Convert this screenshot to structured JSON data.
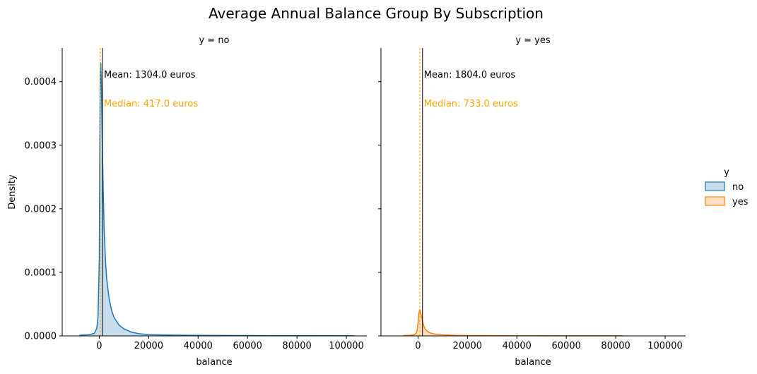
{
  "chart_data": {
    "type": "area",
    "title": "Average Annual Balance Group By Subscription",
    "ylabel": "Density",
    "xlabel": "balance",
    "xlim": [
      -15000,
      108000
    ],
    "ylim": [
      0,
      0.000453
    ],
    "x_ticks": [
      0,
      20000,
      40000,
      60000,
      80000,
      100000
    ],
    "x_tick_labels": [
      "0",
      "20000",
      "40000",
      "60000",
      "80000",
      "100000"
    ],
    "y_ticks": [
      0,
      0.0001,
      0.0002,
      0.0003,
      0.0004
    ],
    "y_tick_labels": [
      "0.0000",
      "0.0001",
      "0.0002",
      "0.0003",
      "0.0004"
    ],
    "grid": false,
    "legend": {
      "title": "y",
      "position": "right",
      "entries": [
        {
          "label": "no",
          "color": "#1f77b4"
        },
        {
          "label": "yes",
          "color": "#ff7f0e"
        }
      ]
    },
    "panels": [
      {
        "title": "y = no",
        "series": "no",
        "color": "#1f77b4",
        "mean": 1304.0,
        "median": 417.0,
        "mean_label": "Mean: 1304.0 euros",
        "median_label": "Median: 417.0 euros",
        "x": [
          -8000,
          -4000,
          -2000,
          -1000,
          -500,
          0,
          200,
          400,
          600,
          900,
          1200,
          1600,
          2000,
          2500,
          3000,
          4000,
          5000,
          6000,
          8000,
          10000,
          13000,
          16000,
          20000,
          30000,
          40000,
          60000,
          80000,
          100000,
          103000
        ],
        "density": [
          1e-06,
          2e-06,
          4e-06,
          1.2e-05,
          3e-05,
          0.00012,
          0.00029,
          0.00041,
          0.00043,
          0.00039,
          0.00031,
          0.00023,
          0.000165,
          0.00012,
          9e-05,
          5.8e-05,
          4e-05,
          2.9e-05,
          1.7e-05,
          1.1e-05,
          6e-06,
          3.5e-06,
          2e-06,
          1.2e-06,
          8e-07,
          5e-07,
          4e-07,
          3e-07,
          1e-07
        ]
      },
      {
        "title": "y = yes",
        "series": "yes",
        "color": "#ff7f0e",
        "mean": 1804.0,
        "median": 733.0,
        "mean_label": "Mean: 1804.0 euros",
        "median_label": "Median: 733.0 euros",
        "x": [
          -6000,
          -3000,
          -1500,
          -800,
          -300,
          0,
          300,
          600,
          900,
          1300,
          1800,
          2400,
          3000,
          4000,
          5000,
          7000,
          10000,
          15000,
          20000,
          30000,
          40000,
          60000,
          80000,
          83000
        ],
        "density": [
          5e-07,
          1e-06,
          2e-06,
          4e-06,
          1e-05,
          2e-05,
          3.4e-05,
          4.1e-05,
          4e-05,
          3.3e-05,
          2.3e-05,
          1.5e-05,
          1e-05,
          6.5e-06,
          4.5e-06,
          2.8e-06,
          1.7e-06,
          9e-07,
          6e-07,
          4e-07,
          3e-07,
          2e-07,
          1e-07,
          1e-07
        ]
      }
    ]
  }
}
